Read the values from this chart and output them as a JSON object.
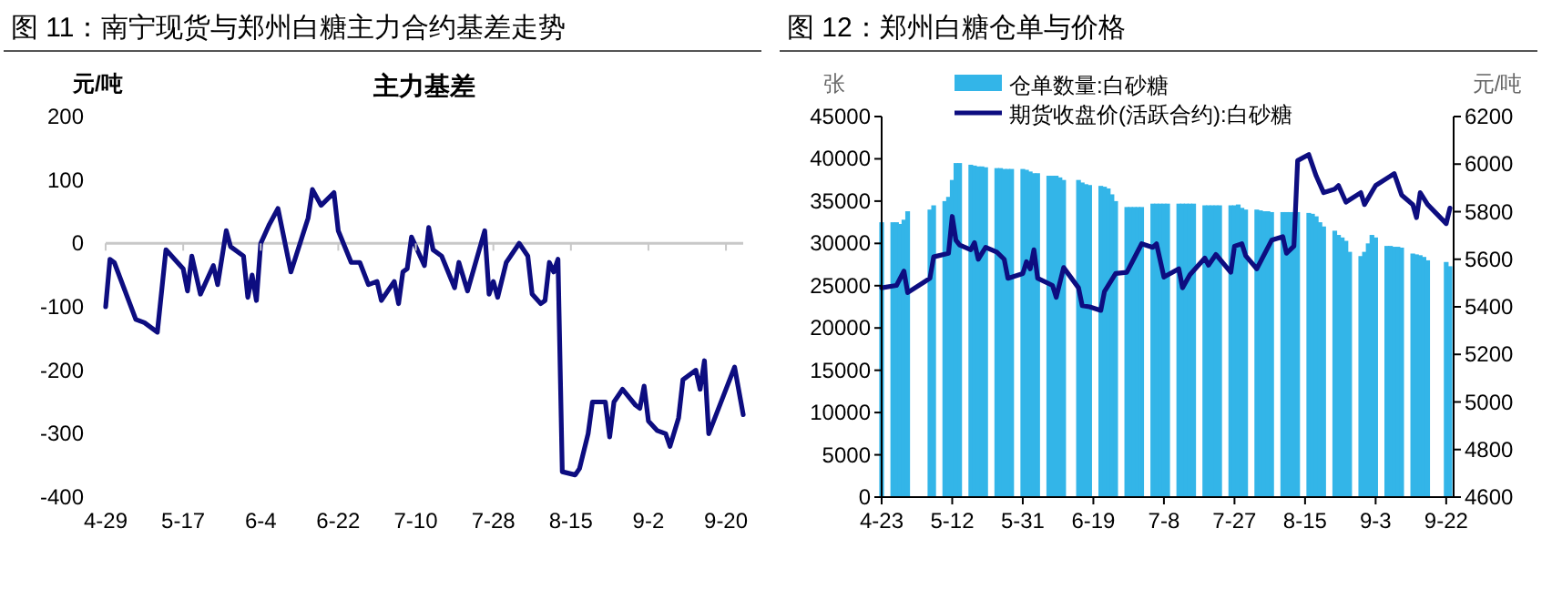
{
  "chart_data": [
    {
      "type": "line",
      "title": "图 11：南宁现货与郑州白糖主力合约基差走势",
      "subtitle": "主力基差",
      "ylabel": "元/吨",
      "legend": false,
      "grid": false,
      "xlim": [
        "--04-29",
        "--09-24"
      ],
      "xticks": [
        {
          "value": "--04-29",
          "label": "4-29"
        },
        {
          "value": "--05-17",
          "label": "5-17"
        },
        {
          "value": "--06-04",
          "label": "6-4"
        },
        {
          "value": "--06-22",
          "label": "6-22"
        },
        {
          "value": "--07-10",
          "label": "7-10"
        },
        {
          "value": "--07-28",
          "label": "7-28"
        },
        {
          "value": "--08-15",
          "label": "8-15"
        },
        {
          "value": "--09-02",
          "label": "9-2"
        },
        {
          "value": "--09-20",
          "label": "9-20"
        }
      ],
      "ylim": [
        -400,
        200
      ],
      "yticks": [
        -400,
        -300,
        -200,
        -100,
        0,
        100,
        200
      ],
      "ref_lines": [
        {
          "axis": "y",
          "value": 0,
          "color": "#c8c8c8"
        }
      ],
      "series": [
        {
          "color": "#0d0d80",
          "x": [
            "--04-29",
            "--04-30",
            "--05-01",
            "--05-06",
            "--05-08",
            "--05-11",
            "--05-13",
            "--05-17",
            "--05-18",
            "--05-19",
            "--05-21",
            "--05-24",
            "--05-25",
            "--05-27",
            "--05-28",
            "--05-31",
            "--06-01",
            "--06-02",
            "--06-03",
            "--06-04",
            "--06-06",
            "--06-08",
            "--06-11",
            "--06-15",
            "--06-16",
            "--06-18",
            "--06-21",
            "--06-22",
            "--06-25",
            "--06-27",
            "--06-29",
            "--07-01",
            "--07-02",
            "--07-05",
            "--07-06",
            "--07-07",
            "--07-08",
            "--07-09",
            "--07-12",
            "--07-13",
            "--07-14",
            "--07-16",
            "--07-19",
            "--07-20",
            "--07-22",
            "--07-26",
            "--07-27",
            "--07-28",
            "--07-29",
            "--07-31",
            "--08-03",
            "--08-05",
            "--08-06",
            "--08-08",
            "--08-09",
            "--08-10",
            "--08-11",
            "--08-12",
            "--08-13",
            "--08-16",
            "--08-17",
            "--08-19",
            "--08-20",
            "--08-23",
            "--08-24",
            "--08-25",
            "--08-27",
            "--08-30",
            "--08-31",
            "--09-01",
            "--09-02",
            "--09-04",
            "--09-06",
            "--09-07",
            "--09-09",
            "--09-10",
            "--09-13",
            "--09-14",
            "--09-15",
            "--09-16",
            "--09-22",
            "--09-24"
          ],
          "values": [
            -100,
            -25,
            -30,
            -120,
            -125,
            -140,
            -10,
            -40,
            -75,
            -20,
            -80,
            -35,
            -65,
            20,
            -5,
            -20,
            -85,
            -50,
            -90,
            0,
            30,
            55,
            -45,
            40,
            85,
            60,
            80,
            20,
            -30,
            -30,
            -65,
            -60,
            -90,
            -60,
            -95,
            -45,
            -40,
            10,
            -35,
            25,
            -10,
            -20,
            -70,
            -30,
            -75,
            20,
            -80,
            -60,
            -85,
            -30,
            0,
            -20,
            -80,
            -95,
            -90,
            -30,
            -45,
            -25,
            -360,
            -365,
            -355,
            -300,
            -250,
            -250,
            -305,
            -250,
            -230,
            -255,
            -260,
            -225,
            -280,
            -295,
            -300,
            -320,
            -275,
            -215,
            -200,
            -230,
            -185,
            -300,
            -195,
            -270
          ]
        }
      ]
    },
    {
      "type": "bar",
      "title": "图 12：郑州白糖仓单与价格",
      "ylabel": "张",
      "y2label": "元/吨",
      "legend": "top",
      "grid": false,
      "xlim": [
        "--04-23",
        "--09-24"
      ],
      "xticks": [
        {
          "value": "--04-23",
          "label": "4-23"
        },
        {
          "value": "--05-12",
          "label": "5-12"
        },
        {
          "value": "--05-31",
          "label": "5-31"
        },
        {
          "value": "--06-19",
          "label": "6-19"
        },
        {
          "value": "--07-08",
          "label": "7-8"
        },
        {
          "value": "--07-27",
          "label": "7-27"
        },
        {
          "value": "--08-15",
          "label": "8-15"
        },
        {
          "value": "--09-03",
          "label": "9-3"
        },
        {
          "value": "--09-22",
          "label": "9-22"
        }
      ],
      "ylim": [
        0,
        45000
      ],
      "yticks": [
        0,
        5000,
        10000,
        15000,
        20000,
        25000,
        30000,
        35000,
        40000,
        45000
      ],
      "y2lim": [
        4600,
        6200
      ],
      "y2ticks": [
        4600,
        4800,
        5000,
        5200,
        5400,
        5600,
        5800,
        6000,
        6200
      ],
      "series": [
        {
          "name": "仓单数量:白砂糖",
          "color": "#33b5e8",
          "x": [
            "--04-23",
            "--04-26",
            "--04-27",
            "--04-28",
            "--04-29",
            "--04-30",
            "--05-06",
            "--05-07",
            "--05-10",
            "--05-11",
            "--05-12",
            "--05-13",
            "--05-14",
            "--05-17",
            "--05-18",
            "--05-19",
            "--05-20",
            "--05-21",
            "--05-24",
            "--05-25",
            "--05-26",
            "--05-27",
            "--05-28",
            "--05-31",
            "--06-01",
            "--06-02",
            "--06-03",
            "--06-04",
            "--06-07",
            "--06-08",
            "--06-09",
            "--06-10",
            "--06-11",
            "--06-15",
            "--06-16",
            "--06-17",
            "--06-18",
            "--06-21",
            "--06-22",
            "--06-23",
            "--06-24",
            "--06-25",
            "--06-28",
            "--06-29",
            "--06-30",
            "--07-01",
            "--07-02",
            "--07-05",
            "--07-06",
            "--07-07",
            "--07-08",
            "--07-09",
            "--07-12",
            "--07-13",
            "--07-14",
            "--07-15",
            "--07-16",
            "--07-19",
            "--07-20",
            "--07-21",
            "--07-22",
            "--07-23",
            "--07-26",
            "--07-27",
            "--07-28",
            "--07-29",
            "--07-30",
            "--08-02",
            "--08-03",
            "--08-04",
            "--08-05",
            "--08-06",
            "--08-09",
            "--08-10",
            "--08-11",
            "--08-12",
            "--08-13",
            "--08-16",
            "--08-17",
            "--08-18",
            "--08-19",
            "--08-20",
            "--08-23",
            "--08-24",
            "--08-25",
            "--08-26",
            "--08-27",
            "--08-30",
            "--08-31",
            "--09-01",
            "--09-02",
            "--09-03",
            "--09-06",
            "--09-07",
            "--09-08",
            "--09-09",
            "--09-10",
            "--09-13",
            "--09-14",
            "--09-15",
            "--09-16",
            "--09-17",
            "--09-22",
            "--09-23"
          ],
          "values": [
            32500,
            32500,
            32500,
            32300,
            32800,
            33800,
            34000,
            34500,
            35000,
            35500,
            37500,
            39500,
            39500,
            39300,
            39200,
            39100,
            39100,
            39000,
            38900,
            38900,
            38800,
            38800,
            38800,
            38800,
            38700,
            38500,
            38300,
            38300,
            38000,
            38000,
            38000,
            37800,
            37500,
            37500,
            37200,
            37000,
            36900,
            36800,
            36700,
            36500,
            35800,
            35000,
            34300,
            34300,
            34300,
            34300,
            34300,
            34700,
            34700,
            34700,
            34700,
            34700,
            34700,
            34700,
            34700,
            34700,
            34700,
            34500,
            34500,
            34500,
            34500,
            34500,
            34500,
            34500,
            34600,
            34200,
            34000,
            34000,
            33900,
            33800,
            33800,
            33700,
            33700,
            33700,
            33700,
            33700,
            33700,
            33600,
            33500,
            33200,
            32500,
            32000,
            31500,
            31000,
            30700,
            30300,
            29000,
            28500,
            29000,
            30000,
            31000,
            30700,
            29700,
            29700,
            29600,
            29600,
            29500,
            28800,
            28700,
            28600,
            28400,
            28000,
            27800,
            27300
          ]
        },
        {
          "name": "期货收盘价(活跃合约):白砂糖",
          "type": "line",
          "axis": "y2",
          "color": "#0d0d80",
          "x": [
            "--04-23",
            "--04-27",
            "--04-29",
            "--04-30",
            "--05-06",
            "--05-07",
            "--05-11",
            "--05-12",
            "--05-13",
            "--05-14",
            "--05-17",
            "--05-18",
            "--05-19",
            "--05-21",
            "--05-24",
            "--05-26",
            "--05-27",
            "--05-31",
            "--06-01",
            "--06-02",
            "--06-03",
            "--06-04",
            "--06-08",
            "--06-09",
            "--06-11",
            "--06-15",
            "--06-16",
            "--06-18",
            "--06-21",
            "--06-22",
            "--06-25",
            "--06-28",
            "--06-30",
            "--07-02",
            "--07-05",
            "--07-06",
            "--07-08",
            "--07-12",
            "--07-13",
            "--07-15",
            "--07-19",
            "--07-20",
            "--07-22",
            "--07-26",
            "--07-27",
            "--07-29",
            "--07-30",
            "--08-02",
            "--08-06",
            "--08-09",
            "--08-10",
            "--08-12",
            "--08-13",
            "--08-16",
            "--08-18",
            "--08-20",
            "--08-23",
            "--08-24",
            "--08-26",
            "--08-30",
            "--08-31",
            "--09-03",
            "--09-08",
            "--09-10",
            "--09-13",
            "--09-14",
            "--09-15",
            "--09-17",
            "--09-22",
            "--09-23"
          ],
          "values": [
            5480,
            5490,
            5550,
            5460,
            5520,
            5610,
            5625,
            5780,
            5680,
            5660,
            5640,
            5670,
            5600,
            5650,
            5630,
            5600,
            5520,
            5540,
            5590,
            5560,
            5640,
            5520,
            5490,
            5440,
            5565,
            5480,
            5405,
            5400,
            5385,
            5465,
            5540,
            5545,
            5605,
            5665,
            5650,
            5665,
            5525,
            5560,
            5480,
            5535,
            5605,
            5575,
            5620,
            5545,
            5655,
            5665,
            5615,
            5560,
            5680,
            5695,
            5625,
            5655,
            6015,
            6040,
            5950,
            5880,
            5895,
            5910,
            5840,
            5880,
            5830,
            5910,
            5960,
            5870,
            5830,
            5775,
            5880,
            5830,
            5750,
            5815
          ]
        }
      ]
    }
  ]
}
